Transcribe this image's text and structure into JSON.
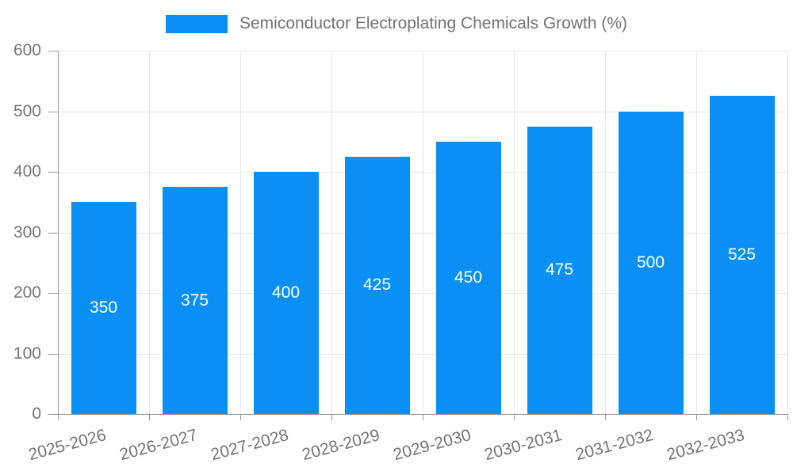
{
  "legend": {
    "label": "Semiconductor Electroplating Chemicals Growth (%)",
    "swatch_color": "#0a90f5"
  },
  "chart_data": {
    "type": "bar",
    "title": "Semiconductor Electroplating Chemicals Growth (%)",
    "categories": [
      "2025-2026",
      "2026-2027",
      "2027-2028",
      "2028-2029",
      "2029-2030",
      "2030-2031",
      "2031-2032",
      "2032-2033"
    ],
    "values": [
      350,
      375,
      400,
      425,
      450,
      475,
      500,
      525
    ],
    "xlabel": "",
    "ylabel": "",
    "ylim": [
      0,
      600
    ],
    "yticks": [
      0,
      100,
      200,
      300,
      400,
      500,
      600
    ],
    "grid": true,
    "legend_position": "top-center",
    "bar_color": "#0a90f5",
    "bar_label_color": "#ffffff",
    "grid_color": "#e6e6e6",
    "axis_color": "#999999",
    "text_color": "#757575"
  }
}
